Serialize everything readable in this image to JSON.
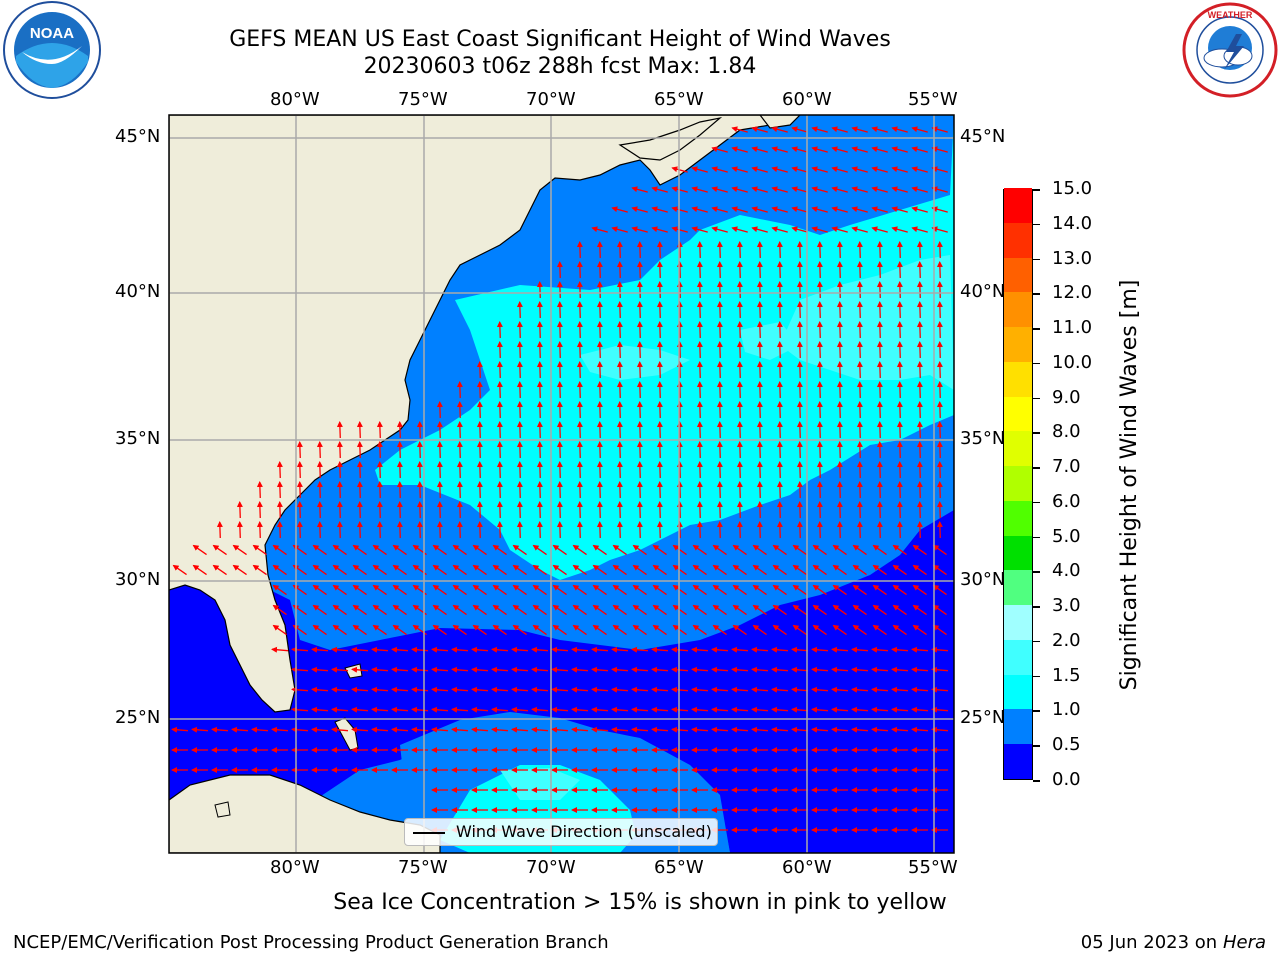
{
  "title": {
    "line1": "GEFS MEAN US East Coast Significant Height of Wind Waves",
    "line2": "20230603 t06z 288h fcst   Max: 1.84"
  },
  "logos": {
    "noaa": {
      "text": "NOAA",
      "ring_text": "NATIONAL OCEANIC AND ATMOSPHERIC ADMINISTRATION · U.S. DEPARTMENT OF COMMERCE"
    },
    "nws": {
      "ring_text": "NATIONAL WEATHER SERVICE"
    }
  },
  "map": {
    "longitude_labels": [
      "80°W",
      "75°W",
      "70°W",
      "65°W",
      "60°W",
      "55°W"
    ],
    "latitude_labels": [
      "45°N",
      "40°N",
      "35°N",
      "30°N",
      "25°N"
    ],
    "land_color": "#efedda",
    "vector_color": "#ff0000"
  },
  "colorbar": {
    "label": "Significant Height of Wind Waves [m]",
    "ticks": [
      "0.0",
      "0.5",
      "1.0",
      "1.5",
      "2.0",
      "3.0",
      "4.0",
      "5.0",
      "6.0",
      "7.0",
      "8.0",
      "9.0",
      "10.0",
      "11.0",
      "12.0",
      "13.0",
      "14.0",
      "15.0"
    ],
    "colors": [
      "#0000ff",
      "#0080ff",
      "#00ffff",
      "#40ffff",
      "#a0ffff",
      "#50ff80",
      "#00e000",
      "#50ff00",
      "#b0ff00",
      "#e0ff00",
      "#ffff00",
      "#ffe000",
      "#ffb000",
      "#ff9000",
      "#ff6000",
      "#ff3000",
      "#ff0000"
    ]
  },
  "legend": {
    "label": "Wind Wave Direction (unscaled)"
  },
  "footer": {
    "note": "Sea Ice Concentration > 15% is shown in pink to yellow",
    "credit": "NCEP/EMC/Verification Post Processing Product Generation Branch",
    "date": "05 Jun 2023 on",
    "host": "Hera"
  }
}
